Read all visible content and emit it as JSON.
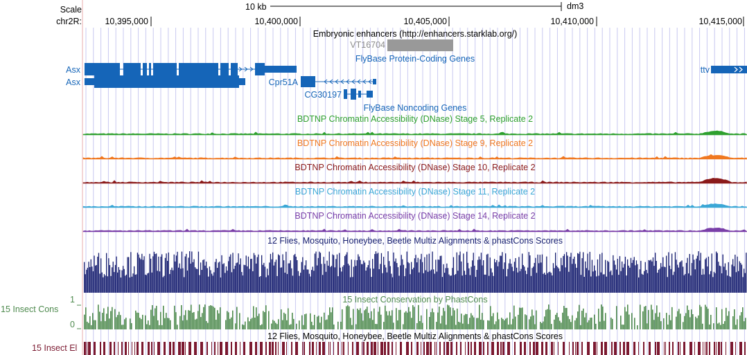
{
  "header": {
    "scale_label": "Scale",
    "scale_bar_label": "10 kb",
    "assembly": "dm3",
    "chrom_label": "chr2R:",
    "positions": [
      "10,395,000",
      "10,400,000",
      "10,405,000",
      "10,410,000",
      "10,415,000"
    ]
  },
  "tracks": {
    "enhancers": {
      "title": "Embryonic enhancers (http://enhancers.starklab.org/)",
      "item": "VT16704"
    },
    "flybase_coding": {
      "title": "FlyBase Protein-Coding Genes",
      "genes": [
        "Asx",
        "Asx",
        "Cpr51A",
        "CG30197",
        "ttv"
      ]
    },
    "flybase_noncoding": {
      "title": "FlyBase Noncoding Genes"
    },
    "dnase": [
      {
        "title": "BDTNP Chromatin Accessibility (DNase) Stage 5, Replicate 2",
        "color": "#2ea02e"
      },
      {
        "title": "BDTNP Chromatin Accessibility (DNase) Stage 9, Replicate 2",
        "color": "#f07820"
      },
      {
        "title": "BDTNP Chromatin Accessibility (DNase) Stage 10, Replicate 2",
        "color": "#8b1a1a"
      },
      {
        "title": "BDTNP Chromatin Accessibility (DNase) Stage 11, Replicate 2",
        "color": "#3ba7d6"
      },
      {
        "title": "BDTNP Chromatin Accessibility (DNase) Stage 14, Replicate 2",
        "color": "#7a3fa8"
      }
    ],
    "multiz": {
      "title": "12 Flies, Mosquito, Honeybee, Beetle Multiz Alignments & phastCons Scores",
      "color": "#141c6e"
    },
    "insect_cons": {
      "title": "15 Insect Conservation by PhastCons",
      "side_label": "15 Insect Cons",
      "axis_max": "1",
      "axis_min": "0",
      "color": "#4e8a4e"
    },
    "insect_el": {
      "title": "12 Flies, Mosquito, Honeybee, Beetle Multiz Alignments & phastCons Scores",
      "side_label": "15 Insect El",
      "color": "#7b1930"
    }
  },
  "colors": {
    "gene_blue": "#1565b8",
    "grid_blue": "#c8c8f0",
    "grid_red": "#f0c8c8",
    "enhancer_gray": "#999999"
  }
}
